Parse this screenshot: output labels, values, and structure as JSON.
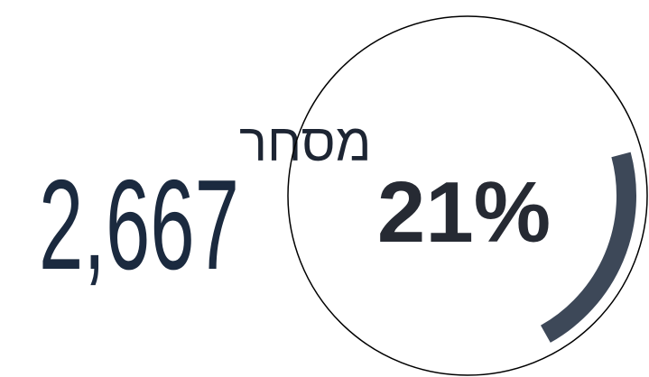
{
  "stat": {
    "label": "מסחר",
    "value": "2,667"
  },
  "ring": {
    "percent": 21,
    "percent_label": "21%",
    "color": "#3d4858"
  }
}
